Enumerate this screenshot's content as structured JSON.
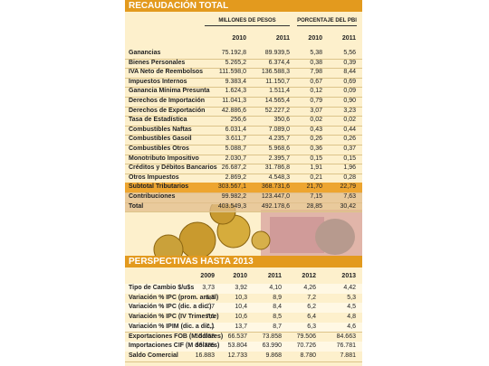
{
  "recaudacion": {
    "title": "RECAUDACIÓN TOTAL",
    "group_headers": [
      "MILLONES DE PESOS",
      "PORCENTAJE DEL PBI"
    ],
    "years": [
      "2010",
      "2011",
      "2010",
      "2011"
    ],
    "rows": [
      [
        "Ganancias",
        "75.192,8",
        "89.939,5",
        "5,38",
        "5,56"
      ],
      [
        "Bienes Personales",
        "5.265,2",
        "6.374,4",
        "0,38",
        "0,39"
      ],
      [
        "IVA Neto de Reembolsos",
        "111.598,0",
        "136.588,3",
        "7,98",
        "8,44"
      ],
      [
        "Impuestos Internos",
        "9.383,4",
        "11.150,7",
        "0,67",
        "0,69"
      ],
      [
        "Ganancia Mínima Presunta",
        "1.624,3",
        "1.511,4",
        "0,12",
        "0,09"
      ],
      [
        "Derechos de Importación",
        "11.041,3",
        "14.565,4",
        "0,79",
        "0,90"
      ],
      [
        "Derechos de Exportación",
        "42.886,6",
        "52.227,2",
        "3,07",
        "3,23"
      ],
      [
        "Tasa de Estadística",
        "256,6",
        "350,6",
        "0,02",
        "0,02"
      ],
      [
        "Combustibles Naftas",
        "6.031,4",
        "7.089,0",
        "0,43",
        "0,44"
      ],
      [
        "Combustibles Gasoil",
        "3.611,7",
        "4.235,7",
        "0,26",
        "0,26"
      ],
      [
        "Combustibles Otros",
        "5.088,7",
        "5.968,6",
        "0,36",
        "0,37"
      ],
      [
        "Monotributo Impositivo",
        "2.030,7",
        "2.395,7",
        "0,15",
        "0,15"
      ],
      [
        "Créditos y Débitos Bancarios",
        "26.687,2",
        "31.786,8",
        "1,91",
        "1,96"
      ],
      [
        "Otros Impuestos",
        "2.869,2",
        "4.548,3",
        "0,21",
        "0,28"
      ],
      [
        "Subtotal Tributarios",
        "303.567,1",
        "368.731,6",
        "21,70",
        "22,79"
      ],
      [
        "Contribuciones",
        "99.982,2",
        "123.447,0",
        "7,15",
        "7,63"
      ],
      [
        "Total",
        "403.549,3",
        "492.178,6",
        "28,85",
        "30,42"
      ]
    ]
  },
  "perspectivas": {
    "title": "PERSPECTIVAS HASTA 2013",
    "years": [
      "2009",
      "2010",
      "2011",
      "2012",
      "2013"
    ],
    "rows": [
      [
        "Tipo de Cambio $/u$s",
        "3,73",
        "3,92",
        "4,10",
        "4,26",
        "4,42"
      ],
      [
        "Variación % IPC (prom. anual)",
        "6,3",
        "10,3",
        "8,9",
        "7,2",
        "5,3"
      ],
      [
        "Variación % IPC (dic. a dic.)",
        "7,7",
        "10,4",
        "8,4",
        "6,2",
        "4,5"
      ],
      [
        "Variación % IPC (IV Trimestre)",
        "7,1",
        "10,6",
        "8,5",
        "6,4",
        "4,8"
      ],
      [
        "Variación % IPIM (dic. a dic.)",
        "7,1",
        "13,7",
        "8,7",
        "6,3",
        "4,6"
      ],
      [
        "Exportaciones FOB (M dólares)",
        "55.668",
        "66.537",
        "73.858",
        "79.506",
        "84.663"
      ],
      [
        "Importaciones CIF (M dólares)",
        "38.785",
        "53.804",
        "63.990",
        "70.726",
        "76.781"
      ],
      [
        "Saldo Comercial",
        "16.883",
        "12.733",
        "9.868",
        "8.780",
        "7.881"
      ]
    ]
  }
}
